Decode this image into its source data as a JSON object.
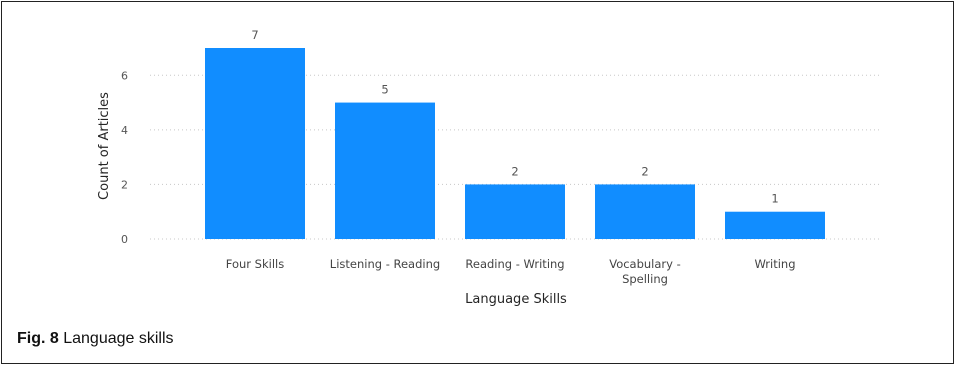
{
  "chart_data": {
    "type": "bar",
    "categories": [
      [
        "Four Skills"
      ],
      [
        "Listening - Reading"
      ],
      [
        "Reading - Writing"
      ],
      [
        "Vocabulary -",
        "Spelling"
      ],
      [
        "Writing"
      ]
    ],
    "values": [
      7,
      5,
      2,
      2,
      1
    ],
    "data_labels": [
      "7",
      "5",
      "2",
      "2",
      "1"
    ],
    "ylim": [
      0,
      7
    ],
    "yticks": [
      0,
      2,
      4,
      6
    ],
    "ytick_labels": [
      "0",
      "2",
      "4",
      "6"
    ],
    "xlabel": "Language Skills",
    "ylabel": "Count of Articles",
    "grid": "horizontal-dotted",
    "bar_color": "#118DFF"
  },
  "caption": {
    "label": "Fig. 8",
    "text": " Language skills"
  }
}
